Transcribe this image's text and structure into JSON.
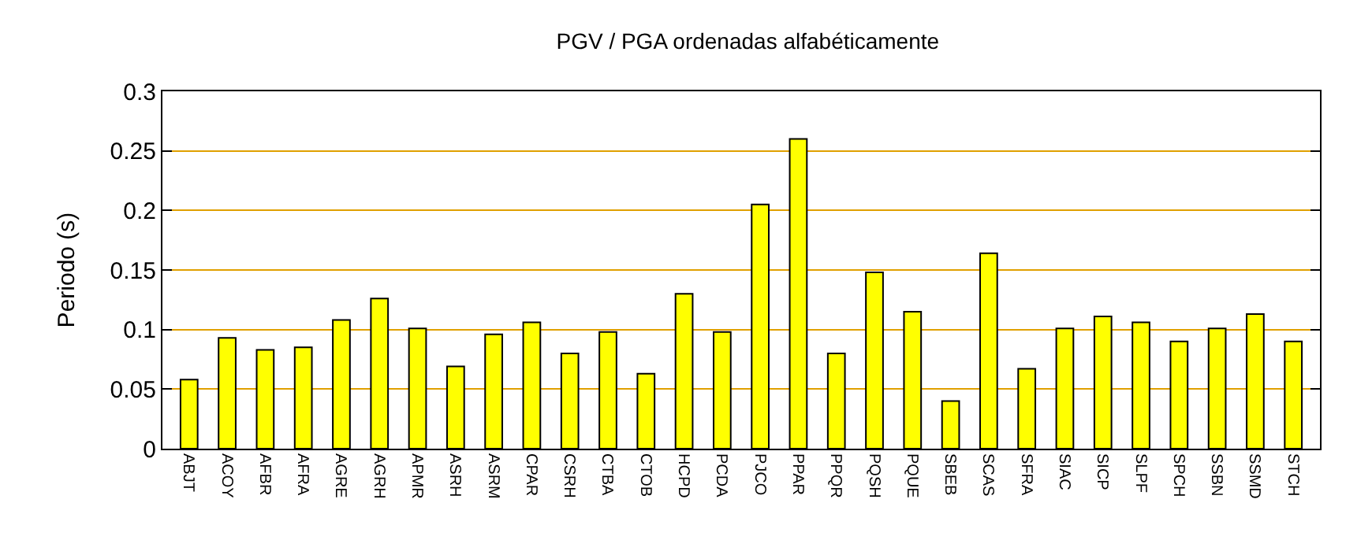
{
  "chart_data": {
    "type": "bar",
    "title": "PGV / PGA ordenadas alfabéticamente",
    "ylabel": "Periodo (s)",
    "categories": [
      "ABJT",
      "ACOY",
      "AFBR",
      "AFRA",
      "AGRE",
      "AGRH",
      "APMR",
      "ASRH",
      "ASRM",
      "CPAR",
      "CSRH",
      "CTBA",
      "CTOB",
      "HCPD",
      "PCDA",
      "PJCO",
      "PPAR",
      "PPQR",
      "PQSH",
      "PQUE",
      "SBEB",
      "SCAS",
      "SFRA",
      "SIAC",
      "SICP",
      "SLPF",
      "SPCH",
      "SSBN",
      "SSMD",
      "STCH"
    ],
    "values": [
      0.058,
      0.093,
      0.083,
      0.085,
      0.108,
      0.126,
      0.101,
      0.069,
      0.096,
      0.106,
      0.08,
      0.098,
      0.063,
      0.13,
      0.098,
      0.205,
      0.26,
      0.08,
      0.148,
      0.115,
      0.04,
      0.164,
      0.067,
      0.101,
      0.111,
      0.106,
      0.09,
      0.101,
      0.113,
      0.09
    ],
    "color": "#ffff00",
    "ylim": [
      0,
      0.3
    ],
    "yticks": [
      0,
      0.05,
      0.1,
      0.15,
      0.2,
      0.25,
      0.3
    ],
    "grid": "y",
    "legend": false
  }
}
